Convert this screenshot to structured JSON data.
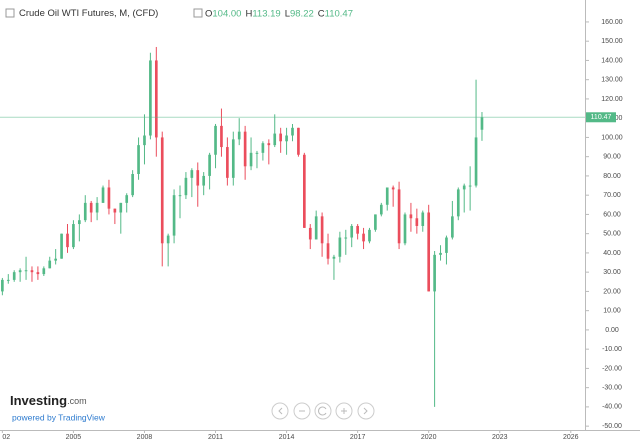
{
  "chart_data": {
    "type": "candlestick",
    "title": "Crude Oil WTI Futures, M, (CFD)",
    "ohlc_prefixes": [
      "O",
      "H",
      "L",
      "C"
    ],
    "last_value_labels": [
      "104.00",
      "113.19",
      "98.22",
      "110.47"
    ],
    "up_color": "#53b987",
    "down_color": "#eb4d5c",
    "x": [
      2002,
      2002.25,
      2002.5,
      2002.75,
      2003,
      2003.25,
      2003.5,
      2003.75,
      2004,
      2004.25,
      2004.5,
      2004.75,
      2005,
      2005.25,
      2005.5,
      2005.75,
      2006,
      2006.25,
      2006.5,
      2006.75,
      2007,
      2007.25,
      2007.5,
      2007.75,
      2008,
      2008.25,
      2008.5,
      2008.75,
      2009,
      2009.25,
      2009.5,
      2009.75,
      2010,
      2010.25,
      2010.5,
      2010.75,
      2011,
      2011.25,
      2011.5,
      2011.75,
      2012,
      2012.25,
      2012.5,
      2012.75,
      2013,
      2013.25,
      2013.5,
      2013.75,
      2014,
      2014.25,
      2014.5,
      2014.75,
      2015,
      2015.25,
      2015.5,
      2015.75,
      2016,
      2016.25,
      2016.5,
      2016.75,
      2017,
      2017.25,
      2017.5,
      2017.75,
      2018,
      2018.25,
      2018.5,
      2018.75,
      2019,
      2019.25,
      2019.5,
      2019.75,
      2020,
      2020.25,
      2020.5,
      2020.75,
      2021,
      2021.25,
      2021.5,
      2021.75,
      2022,
      2022.25
    ],
    "open": [
      20,
      26,
      26,
      30,
      31,
      31,
      30,
      29,
      32,
      36,
      37,
      50,
      43,
      55,
      57,
      66,
      61,
      66,
      74,
      63,
      61,
      66,
      70,
      81,
      96,
      101,
      140,
      100,
      45,
      49,
      70,
      70,
      79,
      83,
      75,
      80,
      91,
      106,
      95,
      79,
      99,
      103,
      85,
      92,
      92,
      97,
      96,
      102,
      98,
      101,
      105,
      91,
      53,
      47,
      59,
      45,
      37,
      38,
      48,
      48,
      54,
      50,
      46,
      52,
      60,
      65,
      74,
      73,
      45,
      60,
      58,
      54,
      61,
      20,
      39,
      40,
      48,
      59,
      73,
      75,
      75,
      104
    ],
    "high": [
      27,
      29,
      31,
      32,
      38,
      33,
      33,
      33,
      38,
      42,
      50,
      55,
      57,
      60,
      70,
      67,
      69,
      75,
      78,
      63,
      66,
      71,
      83,
      100,
      112,
      144,
      147,
      103,
      50,
      73,
      75,
      82,
      84,
      87,
      82,
      92,
      107,
      115,
      100,
      103,
      110,
      106,
      100,
      93,
      98,
      99,
      112,
      105,
      105,
      107,
      105,
      92,
      55,
      62,
      61,
      50,
      39,
      51,
      52,
      55,
      55,
      53,
      53,
      60,
      66,
      73,
      75,
      77,
      61,
      66,
      63,
      62,
      65,
      41,
      44,
      49,
      67,
      74,
      76,
      85,
      130,
      113.19
    ],
    "low": [
      18,
      24,
      25,
      25,
      26,
      25,
      26,
      28,
      32,
      34,
      37,
      40,
      42,
      46,
      56,
      56,
      57,
      66,
      60,
      55,
      50,
      61,
      69,
      78,
      86,
      99,
      90,
      33,
      33,
      45,
      58,
      68,
      69,
      64,
      70,
      73,
      84,
      90,
      75,
      75,
      96,
      78,
      83,
      84,
      88,
      86,
      95,
      92,
      91,
      98,
      90,
      53,
      42,
      47,
      38,
      34,
      26,
      35,
      39,
      43,
      47,
      42,
      45,
      51,
      59,
      62,
      64,
      42,
      44,
      51,
      50,
      51,
      20,
      -40,
      36,
      34,
      47,
      57,
      61,
      62,
      74,
      98.22
    ],
    "close": [
      26,
      26,
      30,
      31,
      31,
      30,
      29,
      32,
      36,
      37,
      50,
      43,
      55,
      57,
      66,
      61,
      66,
      74,
      63,
      61,
      66,
      70,
      81,
      96,
      101,
      140,
      100,
      45,
      49,
      70,
      70,
      79,
      83,
      75,
      80,
      91,
      106,
      95,
      79,
      99,
      103,
      85,
      92,
      92,
      97,
      96,
      102,
      98,
      101,
      105,
      91,
      53,
      47,
      59,
      45,
      37,
      38,
      48,
      48,
      54,
      50,
      46,
      52,
      60,
      65,
      74,
      73,
      45,
      60,
      58,
      54,
      61,
      20,
      39,
      40,
      48,
      59,
      73,
      75,
      75,
      100,
      110.47
    ],
    "xlim": [
      2001.9,
      2026.6
    ],
    "xticks": [
      {
        "value": 2002,
        "label": "02"
      },
      2005,
      2008,
      2011,
      2014,
      2017,
      2020,
      2023,
      2026
    ],
    "ylim": [
      -52,
      171.4
    ],
    "yticks": [
      {
        "value": 160,
        "label": "160.00"
      },
      {
        "value": 150,
        "label": "150.00"
      },
      {
        "value": 140,
        "label": "140.00"
      },
      {
        "value": 130,
        "label": "130.00"
      },
      {
        "value": 120,
        "label": "120.00"
      },
      {
        "value": 110,
        "label": "110.00"
      },
      {
        "value": 100,
        "label": "100.00"
      },
      {
        "value": 90,
        "label": "90.00"
      },
      {
        "value": 80,
        "label": "80.00"
      },
      {
        "value": 70,
        "label": "70.00"
      },
      {
        "value": 60,
        "label": "60.00"
      },
      {
        "value": 50,
        "label": "50.00"
      },
      {
        "value": 40,
        "label": "40.00"
      },
      {
        "value": 30,
        "label": "30.00"
      },
      {
        "value": 20,
        "label": "20.00"
      },
      {
        "value": 10,
        "label": "10.00"
      },
      {
        "value": 0,
        "label": "0.00"
      },
      {
        "value": -10,
        "label": "-10.00"
      },
      {
        "value": -20,
        "label": "-20.00"
      },
      {
        "value": -30,
        "label": "-30.00"
      },
      {
        "value": -40,
        "label": "-40.00"
      },
      {
        "value": -50,
        "label": "-50.00"
      }
    ]
  },
  "branding": {
    "logo": "Investing",
    "logo_suffix": ".com",
    "powered_by": "powered by TradingView"
  }
}
